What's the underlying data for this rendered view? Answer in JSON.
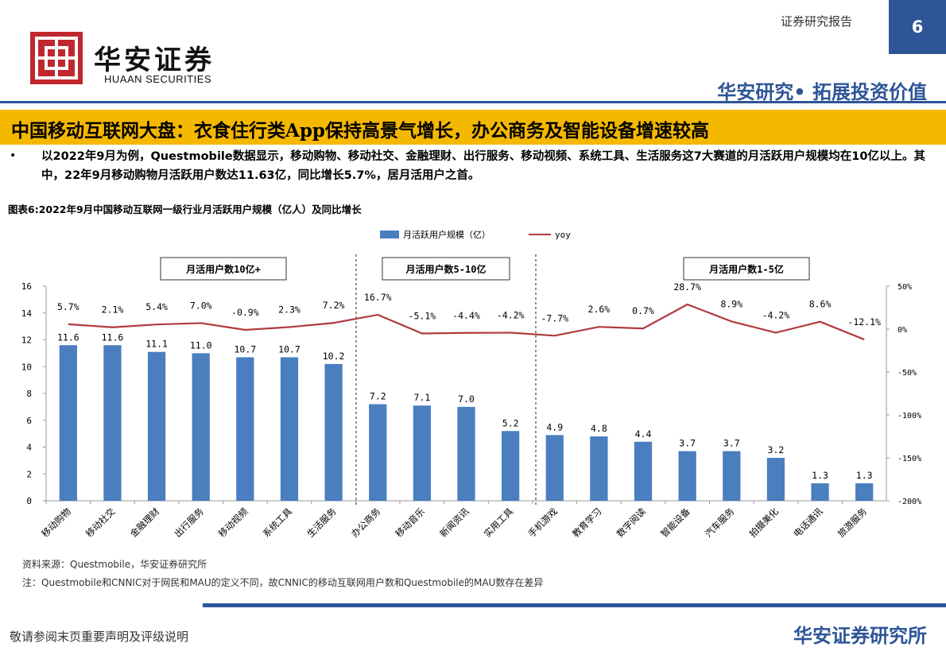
{
  "header": {
    "logo_cn": "华安证券",
    "logo_en": "HUAAN SECURITIES",
    "report_type": "证券研究报告",
    "page_number": "6",
    "slogan": "华安研究•  拓展投资价值"
  },
  "title": "中国移动互联网大盘：衣食住行类App保持高景气增长，办公商务及智能设备增速较高",
  "summary": "以2022年9月为例，Questmobile数据显示，移动购物、移动社交、金融理财、出行服务、移动视频、系统工具、生活服务这7大赛道的月活跃用户规模均在10亿以上。其中，22年9月移动购物月活跃用户数达11.63亿，同比增长5.7%，居月活用户之首。",
  "bullet": "•",
  "figure_title": "图表6:2022年9月中国移动互联网一级行业月活跃用户规模（亿人）及同比增长",
  "chart_data": {
    "type": "bar",
    "categories": [
      "移动购物",
      "移动社交",
      "金融理财",
      "出行服务",
      "移动视频",
      "系统工具",
      "生活服务",
      "办公商务",
      "移动音乐",
      "新闻资讯",
      "实用工具",
      "手机游戏",
      "教育学习",
      "数字阅读",
      "智能设备",
      "汽车服务",
      "拍摄美化",
      "电话通讯",
      "旅游服务"
    ],
    "series": [
      {
        "name": "月活跃用户规模（亿）",
        "type": "bar",
        "values": [
          11.6,
          11.6,
          11.1,
          11.0,
          10.7,
          10.7,
          10.2,
          7.2,
          7.1,
          7.0,
          5.2,
          4.9,
          4.8,
          4.4,
          3.7,
          3.7,
          3.2,
          1.3,
          1.3
        ],
        "labels": [
          "11.6",
          "11.6",
          "11.1",
          "11.0",
          "10.7",
          "10.7",
          "10.2",
          "7.2",
          "7.1",
          "7.0",
          "5.2",
          "4.9",
          "4.8",
          "4.4",
          "3.7",
          "3.7",
          "3.2",
          "1.3",
          "1.3"
        ]
      },
      {
        "name": "yoy",
        "type": "line",
        "axis": "right",
        "values": [
          5.7,
          2.1,
          5.4,
          7.0,
          -0.9,
          2.3,
          7.2,
          16.7,
          -5.1,
          -4.4,
          -4.2,
          -7.7,
          2.6,
          0.7,
          28.7,
          8.9,
          -4.2,
          8.6,
          -12.1
        ],
        "labels": [
          "5.7%",
          "2.1%",
          "5.4%",
          "7.0%",
          "-0.9%",
          "2.3%",
          "7.2%",
          "16.7%",
          "-5.1%",
          "-4.4%",
          "-4.2%",
          "-7.7%",
          "2.6%",
          "0.7%",
          "28.7%",
          "8.9%",
          "-4.2%",
          "8.6%",
          "-12.1%"
        ]
      }
    ],
    "ylim_left": [
      0,
      16
    ],
    "ylim_right": [
      -200,
      50
    ],
    "y_left_ticks": [
      "0",
      "2",
      "4",
      "6",
      "8",
      "10",
      "12",
      "14",
      "16"
    ],
    "y_right_ticks": [
      "-200%",
      "-150%",
      "-100%",
      "-50%",
      "0%",
      "50%"
    ],
    "groups": [
      "月活用户数10亿+",
      "月活用户数5-10亿",
      "月活用户数1-5亿"
    ],
    "legend_position": "top",
    "colors": {
      "bar": "#4a7ebf",
      "line": "#b23a3f"
    }
  },
  "footer": {
    "source": "资料来源：Questmobile，华安证券研究所",
    "note": "注：Questmobile和CNNIC对于网民和MAU的定义不同，故CNNIC的移动互联网用户数和Questmobile的MAU数存在差异",
    "disclaimer": "敬请参阅末页重要声明及评级说明",
    "institute": "华安证券研究所"
  }
}
